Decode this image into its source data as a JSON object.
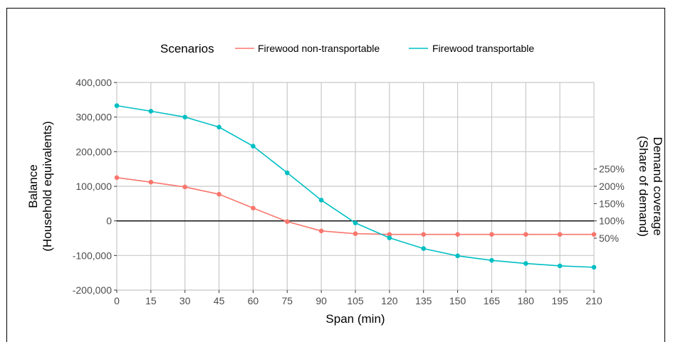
{
  "chart_data": {
    "type": "line",
    "legend": {
      "title": "Scenarios",
      "placement": "top"
    },
    "xlabel": "Span (min)",
    "ylabel_lines": [
      "Balance",
      "(Household equivalents)"
    ],
    "y2label_lines": [
      "Demand coverage",
      "(Share of demand)"
    ],
    "xlim": [
      0,
      210
    ],
    "ylim": [
      -200000,
      400000
    ],
    "x_ticks": [
      0,
      15,
      30,
      45,
      60,
      75,
      90,
      105,
      120,
      135,
      150,
      165,
      180,
      195,
      210
    ],
    "y_ticks": [
      {
        "value": -200000,
        "label": "-200,000"
      },
      {
        "value": -100000,
        "label": "-100,000"
      },
      {
        "value": 0,
        "label": "0"
      },
      {
        "value": 100000,
        "label": "100,000"
      },
      {
        "value": 200000,
        "label": "200,000"
      },
      {
        "value": 300000,
        "label": "300,000"
      },
      {
        "value": 400000,
        "label": "400,000"
      }
    ],
    "y2_ticks": [
      {
        "value": 50,
        "label": "50%"
      },
      {
        "value": 100,
        "label": "100%"
      },
      {
        "value": 150,
        "label": "150%"
      },
      {
        "value": 200,
        "label": "200%"
      },
      {
        "value": 250,
        "label": "250%"
      }
    ],
    "y2_scale": {
      "zero_at_percent": 100,
      "balance_per_percent": 1000
    },
    "zero_line": true,
    "grid": true,
    "x": [
      0,
      15,
      30,
      45,
      60,
      75,
      90,
      105,
      120,
      135,
      150,
      165,
      180,
      195,
      210
    ],
    "series": [
      {
        "name": "Firewood non-transportable",
        "color": "#f8766d",
        "values": [
          125000,
          112000,
          98000,
          77000,
          37000,
          -2000,
          -29000,
          -37000,
          -39000,
          -39000,
          -39000,
          -39000,
          -39000,
          -39000,
          -39000
        ]
      },
      {
        "name": "Firewood transportable",
        "color": "#00bfc4",
        "values": [
          333000,
          317000,
          300000,
          271000,
          216000,
          139000,
          60000,
          -6000,
          -49000,
          -80000,
          -101000,
          -114000,
          -123000,
          -130000,
          -134000
        ]
      }
    ]
  }
}
